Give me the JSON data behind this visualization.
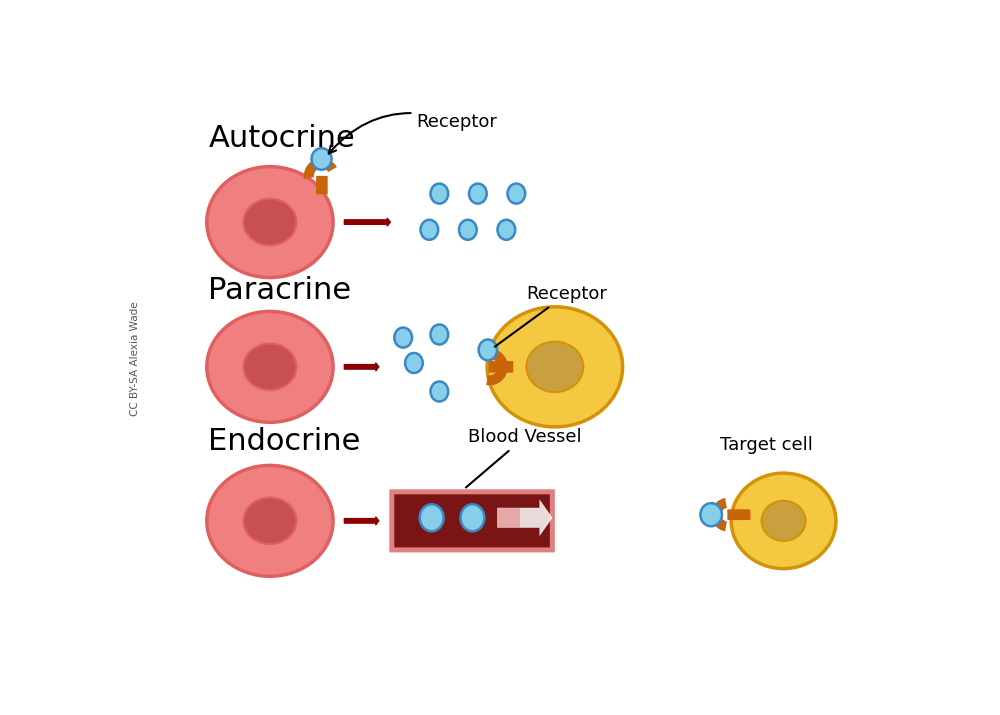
{
  "bg_color": "#ffffff",
  "cell_pink_face": "#F08080",
  "cell_pink_edge": "#E06060",
  "cell_pink_nucleus": "#C85050",
  "cell_yellow_face": "#F5C842",
  "cell_yellow_edge": "#D4920A",
  "cell_yellow_nucleus": "#C8A040",
  "receptor_orange": "#C8640A",
  "ligand_blue_face": "#87CEEB",
  "ligand_blue_edge": "#3A88C4",
  "arrow_dark_red": "#8B0000",
  "blood_vessel_dark": "#7A1515",
  "blood_vessel_pink": "#E08080",
  "white_arrow": "#ffffff",
  "label_color": "#000000",
  "title_autocrine": "Autocrine",
  "title_paracrine": "Paracrine",
  "title_endocrine": "Endocrine",
  "label_receptor": "Receptor",
  "label_blood_vessel": "Blood Vessel",
  "label_target_cell": "Target cell",
  "label_credit": "CC BY-SA Alexia Wade"
}
